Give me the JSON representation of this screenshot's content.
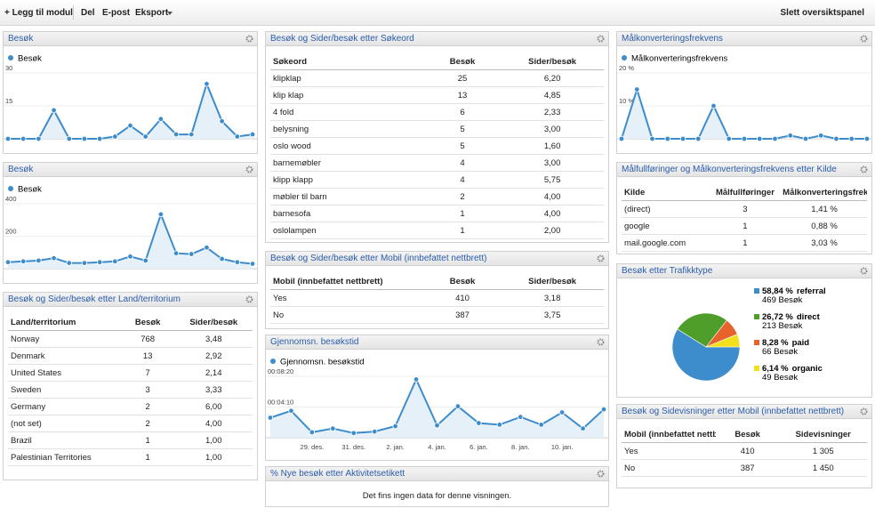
{
  "toolbar": {
    "add_module": "+ Legg til modul",
    "share": "Del",
    "email": "E-post",
    "export": "Eksport",
    "delete": "Slett oversiktspanel"
  },
  "widgets": [
    {
      "title": "Besøk",
      "chart": {
        "type": "line",
        "series": [
          {
            "name": "Besøk",
            "color": "#3d8ccb",
            "values": [
              0,
              0,
              0,
              13,
              0,
              0,
              0,
              1,
              6,
              1,
              9,
              2,
              2,
              25,
              8,
              1,
              2
            ]
          }
        ],
        "ylim": [
          0,
          30
        ],
        "yticks": [
          30,
          15
        ]
      }
    },
    {
      "title": "Besøk",
      "chart": {
        "type": "line",
        "series": [
          {
            "name": "Besøk",
            "color": "#3d8ccb",
            "values": [
              40,
              45,
              50,
              65,
              35,
              35,
              40,
              45,
              75,
              50,
              335,
              95,
              90,
              130,
              60,
              40,
              30
            ]
          }
        ],
        "ylim": [
          0,
          400
        ],
        "yticks": [
          400,
          200
        ]
      }
    },
    {
      "title": "Besøk og Sider/besøk etter Land/territorium",
      "table": {
        "columns": [
          "Land/territorium",
          "Besøk",
          "Sider/besøk"
        ],
        "rows": [
          [
            "Norway",
            "768",
            "3,48"
          ],
          [
            "Denmark",
            "13",
            "2,92"
          ],
          [
            "United States",
            "7",
            "2,14"
          ],
          [
            "Sweden",
            "3",
            "3,33"
          ],
          [
            "Germany",
            "2",
            "6,00"
          ],
          [
            "(not set)",
            "2",
            "4,00"
          ],
          [
            "Brazil",
            "1",
            "1,00"
          ],
          [
            "Palestinian Territories",
            "1",
            "1,00"
          ]
        ]
      }
    },
    {
      "title": "Besøk og Sider/besøk etter Søkeord",
      "table": {
        "columns": [
          "Søkeord",
          "Besøk",
          "Sider/besøk"
        ],
        "rows": [
          [
            "klipklap",
            "25",
            "6,20"
          ],
          [
            "klip klap",
            "13",
            "4,85"
          ],
          [
            "4 fold",
            "6",
            "2,33"
          ],
          [
            "belysning",
            "5",
            "3,00"
          ],
          [
            "oslo wood",
            "5",
            "1,60"
          ],
          [
            "barnemøbler",
            "4",
            "3,00"
          ],
          [
            "klipp klapp",
            "4",
            "5,75"
          ],
          [
            "møbler til barn",
            "2",
            "4,00"
          ],
          [
            "barnesofa",
            "1",
            "4,00"
          ],
          [
            "oslolampen",
            "1",
            "2,00"
          ]
        ]
      }
    },
    {
      "title": "Besøk og Sider/besøk etter Mobil (innbefattet nettbrett)",
      "table": {
        "columns": [
          "Mobil (innbefattet nettbrett)",
          "Besøk",
          "Sider/besøk"
        ],
        "rows": [
          [
            "Yes",
            "410",
            "3,18"
          ],
          [
            "No",
            "387",
            "3,75"
          ]
        ]
      }
    },
    {
      "title": "Gjennomsn. besøkstid",
      "chart": {
        "type": "line",
        "categories": [
          null,
          null,
          "29. des.",
          null,
          "31. des.",
          null,
          "2. jan.",
          null,
          "4. jan.",
          null,
          "6. jan.",
          null,
          "8. jan.",
          null,
          "10. jan.",
          null,
          null
        ],
        "series": [
          {
            "name": "Gjennomsn. besøkstid",
            "color": "#3d8ccb",
            "values": [
              163,
              219,
              44,
              75,
              38,
              50,
              94,
              475,
              100,
              256,
              119,
              106,
              169,
              106,
              206,
              75,
              231
            ]
          }
        ],
        "ylim": [
          0,
          500
        ],
        "yticks": [
          {
            "value": 500,
            "label": "00:08:20"
          },
          {
            "value": 250,
            "label": "00:04:10"
          }
        ]
      }
    },
    {
      "title": "% Nye besøk etter Aktivitetsetikett",
      "message": "Det fins ingen data for denne visningen."
    },
    {
      "title": "Målkonverteringsfrekvens",
      "chart": {
        "type": "line",
        "series": [
          {
            "name": "Målkonverteringsfrekvens",
            "color": "#3d8ccb",
            "values": [
              0,
              15,
              0,
              0,
              0,
              0,
              10,
              0,
              0,
              0,
              0,
              1,
              0,
              1,
              0,
              0,
              0
            ]
          }
        ],
        "ylim": [
          0,
          20
        ],
        "yticks": [
          {
            "value": 20,
            "label": "20 %"
          },
          {
            "value": 10,
            "label": "10 %"
          }
        ]
      }
    },
    {
      "title": "Målfullføringer og Målkonverteringsfrekvens etter Kilde",
      "table": {
        "columns": [
          "Kilde",
          "Målfullføringer",
          "Målkonverteringsfrekvens"
        ],
        "rows": [
          [
            "(direct)",
            "3",
            "1,41 %"
          ],
          [
            "google",
            "1",
            "0,88 %"
          ],
          [
            "mail.google.com",
            "1",
            "3,03 %"
          ]
        ]
      }
    },
    {
      "title": "Besøk etter Trafikktype",
      "chart": {
        "type": "pie",
        "categories": [
          "referral",
          "direct",
          "paid",
          "organic"
        ],
        "values": [
          58.84,
          26.72,
          8.28,
          6.14
        ],
        "value_labels": [
          "58,84 %",
          "26,72 %",
          "8,28 %",
          "6,14 %"
        ],
        "counts": [
          469,
          213,
          66,
          49
        ],
        "count_labels": [
          "469 Besøk",
          "213 Besøk",
          "66 Besøk",
          "49 Besøk"
        ],
        "colors": [
          "#3d8ccb",
          "#4f9e2c",
          "#e8632b",
          "#f2e01c"
        ]
      }
    },
    {
      "title": "Besøk og Sidevisninger etter Mobil (innbefattet nettbrett)",
      "table": {
        "columns": [
          "Mobil (innbefattet nettbrett)",
          "Besøk",
          "Sidevisninger"
        ],
        "rows": [
          [
            "Yes",
            "410",
            "1 305"
          ],
          [
            "No",
            "387",
            "1 450"
          ]
        ]
      }
    }
  ]
}
